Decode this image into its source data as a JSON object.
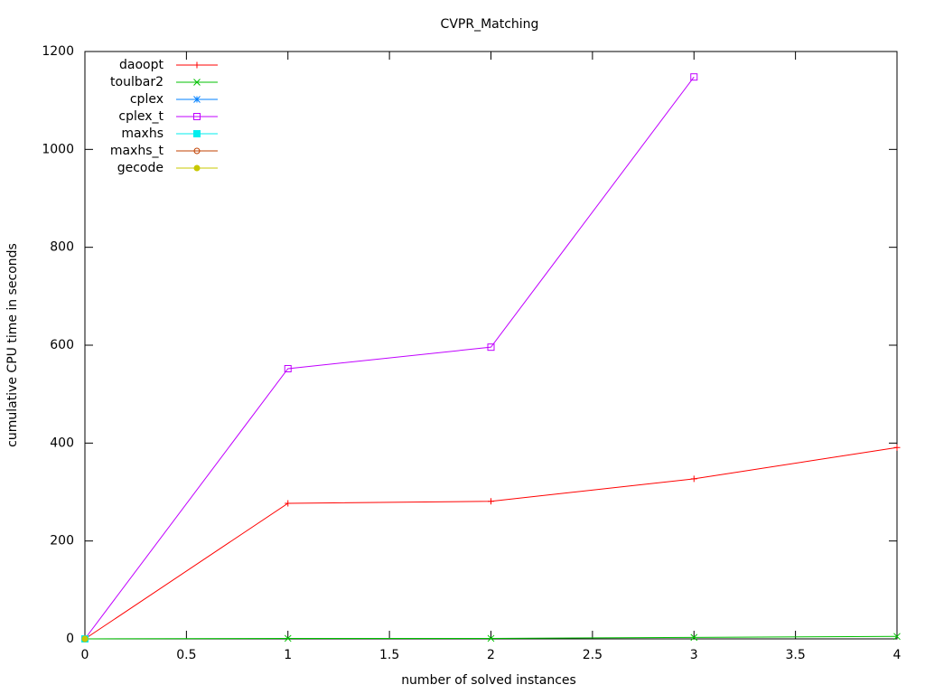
{
  "chart_data": {
    "type": "line",
    "title": "CVPR_Matching",
    "x_label": "number of solved instances",
    "y_label": "cumulative CPU time in seconds",
    "x": [
      0,
      1,
      2,
      3,
      4
    ],
    "series": [
      {
        "name": "daoopt",
        "color": "#ff0000",
        "marker": "plus",
        "values": [
          0,
          277,
          281,
          327,
          391
        ]
      },
      {
        "name": "toulbar2",
        "color": "#00c000",
        "marker": "cross",
        "values": [
          0,
          1,
          1,
          3,
          5
        ]
      },
      {
        "name": "cplex",
        "color": "#0080ff",
        "marker": "star",
        "values": [
          0,
          null,
          null,
          null,
          null
        ]
      },
      {
        "name": "cplex_t",
        "color": "#c000ff",
        "marker": "open-square",
        "values": [
          0,
          552,
          596,
          1148,
          null
        ]
      },
      {
        "name": "maxhs",
        "color": "#00eeee",
        "marker": "filled-square",
        "values": [
          0,
          null,
          null,
          null,
          null
        ]
      },
      {
        "name": "maxhs_t",
        "color": "#c04000",
        "marker": "open-circle",
        "values": [
          0,
          null,
          null,
          null,
          null
        ]
      },
      {
        "name": "gecode",
        "color": "#c8c800",
        "marker": "filled-circle",
        "values": [
          0,
          null,
          null,
          null,
          null
        ]
      }
    ],
    "xlim": [
      0,
      4
    ],
    "ylim": [
      0,
      1200
    ],
    "xticks": [
      0,
      0.5,
      1,
      1.5,
      2,
      2.5,
      3,
      3.5,
      4
    ],
    "yticks": [
      0,
      200,
      400,
      600,
      800,
      1000,
      1200
    ],
    "legend": "top-left"
  }
}
